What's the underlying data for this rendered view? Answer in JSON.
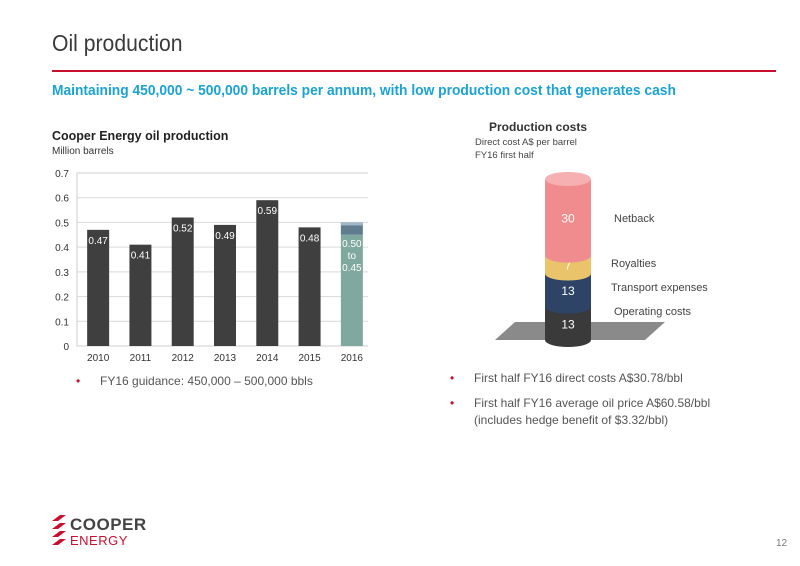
{
  "slide": {
    "title": "Oil production",
    "subtitle": "Maintaining 450,000 ~ 500,000 barrels per annum, with low production cost that generates cash",
    "page_number": "12"
  },
  "left_chart": {
    "title": "Cooper Energy oil production",
    "unit": "Million barrels",
    "bullet": "FY16 guidance: 450,000 – 500,000 bbls"
  },
  "right_chart": {
    "title": "Production costs",
    "subtitle_line1": "Direct cost A$ per barrel",
    "subtitle_line2": "FY16 first half",
    "bullets": [
      "First half FY16 direct costs A$30.78/bbl",
      "First half FY16 average oil price A$60.58/bbl  (includes hedge benefit of $3.32/bbl)"
    ]
  },
  "logo": {
    "line1": "COOPER",
    "line2": "ENERGY"
  },
  "colors": {
    "accent_red": "#c8102e",
    "subtitle_blue": "#1aa3d4",
    "bar_dark": "#3f3f3f",
    "bar_2016": "#7fa89e"
  },
  "chart_data": [
    {
      "type": "bar",
      "categories": [
        "2010",
        "2011",
        "2012",
        "2013",
        "2014",
        "2015",
        "2016"
      ],
      "values": [
        0.47,
        0.41,
        0.52,
        0.49,
        0.59,
        0.48,
        0.5
      ],
      "range_2016": [
        0.45,
        0.5
      ],
      "data_labels": [
        "0.47",
        "0.41",
        "0.52",
        "0.49",
        "0.59",
        "0.48",
        "0.50\nto\n0.45"
      ],
      "yticks": [
        "0",
        "0.1",
        "0.2",
        "0.3",
        "0.4",
        "0.5",
        "0.6",
        "0.7"
      ],
      "ylim": [
        0,
        0.7
      ],
      "grid": true
    },
    {
      "type": "bar",
      "stacked": true,
      "categories": [
        "FY16 first half"
      ],
      "series": [
        {
          "name": "Operating costs",
          "values": [
            13
          ],
          "color": "#3a3a3a",
          "top_color": "#2a2a2a"
        },
        {
          "name": "Transport expenses",
          "values": [
            13
          ],
          "color": "#2d4466",
          "top_color": "#3b5a86"
        },
        {
          "name": "Royalties",
          "values": [
            7
          ],
          "color": "#e9c46a",
          "top_color": "#f2d48a"
        },
        {
          "name": "Netback",
          "values": [
            30
          ],
          "color": "#f08c8e",
          "top_color": "#f6b0b2"
        }
      ]
    }
  ]
}
